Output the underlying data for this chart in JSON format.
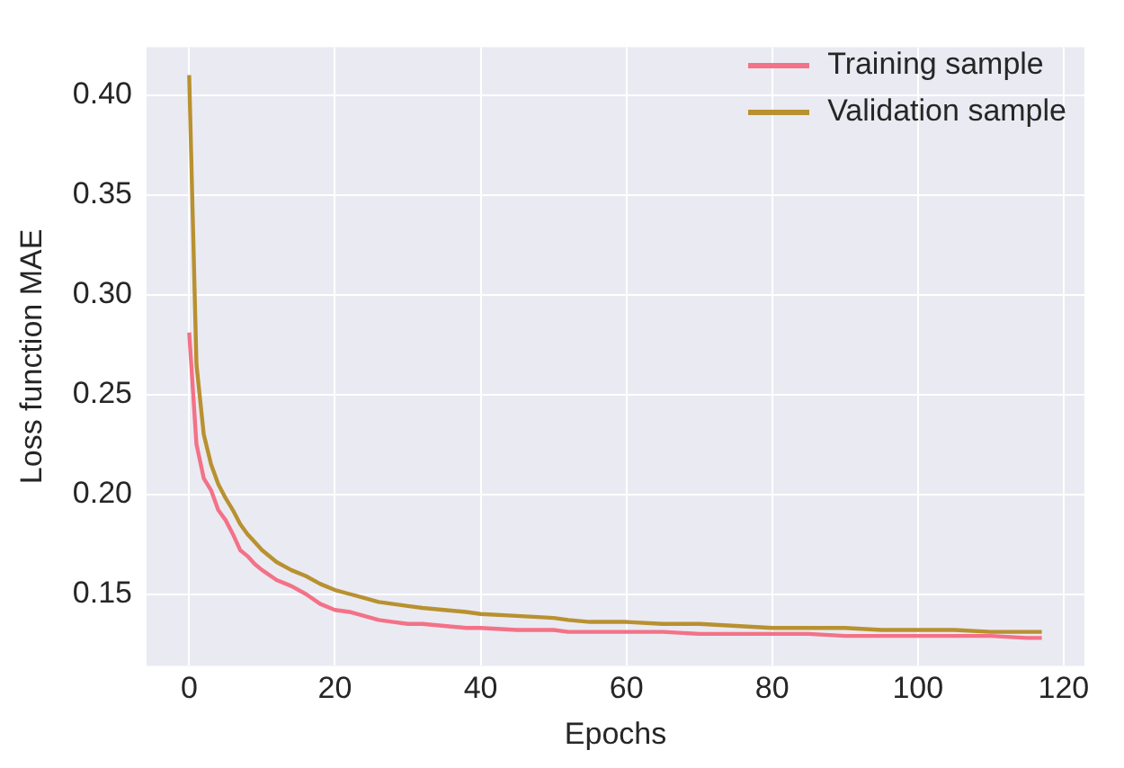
{
  "chart_data": {
    "type": "line",
    "xlabel": "Epochs",
    "ylabel": "Loss function MAE",
    "x": [
      0,
      1,
      2,
      3,
      4,
      5,
      6,
      7,
      8,
      9,
      10,
      12,
      14,
      16,
      18,
      20,
      22,
      24,
      26,
      28,
      30,
      32,
      35,
      38,
      40,
      45,
      50,
      52,
      55,
      60,
      65,
      70,
      75,
      80,
      85,
      90,
      95,
      100,
      105,
      110,
      115,
      117
    ],
    "series": [
      {
        "name": "Training sample",
        "color": "#f37287",
        "values": [
          0.281,
          0.225,
          0.208,
          0.202,
          0.192,
          0.187,
          0.18,
          0.172,
          0.169,
          0.165,
          0.162,
          0.157,
          0.154,
          0.15,
          0.145,
          0.142,
          0.141,
          0.139,
          0.137,
          0.136,
          0.135,
          0.135,
          0.134,
          0.133,
          0.133,
          0.132,
          0.132,
          0.131,
          0.131,
          0.131,
          0.131,
          0.13,
          0.13,
          0.13,
          0.13,
          0.129,
          0.129,
          0.129,
          0.129,
          0.129,
          0.128,
          0.128
        ]
      },
      {
        "name": "Validation sample",
        "color": "#b89130",
        "values": [
          0.41,
          0.265,
          0.23,
          0.215,
          0.205,
          0.198,
          0.192,
          0.185,
          0.18,
          0.176,
          0.172,
          0.166,
          0.162,
          0.159,
          0.155,
          0.152,
          0.15,
          0.148,
          0.146,
          0.145,
          0.144,
          0.143,
          0.142,
          0.141,
          0.14,
          0.139,
          0.138,
          0.137,
          0.136,
          0.136,
          0.135,
          0.135,
          0.134,
          0.133,
          0.133,
          0.133,
          0.132,
          0.132,
          0.132,
          0.131,
          0.131,
          0.131
        ]
      }
    ],
    "xlim": [
      -5.85,
      122.85
    ],
    "xticks": [
      0,
      20,
      40,
      60,
      80,
      100,
      120
    ],
    "ylim": [
      0.114,
      0.424
    ],
    "yticks": [
      {
        "value": 0.15,
        "label": "0.15"
      },
      {
        "value": 0.2,
        "label": "0.20"
      },
      {
        "value": 0.25,
        "label": "0.25"
      },
      {
        "value": 0.3,
        "label": "0.30"
      },
      {
        "value": 0.35,
        "label": "0.35"
      },
      {
        "value": 0.4,
        "label": "0.40"
      }
    ],
    "grid": true,
    "legend": "top right",
    "marker": "none",
    "line_style": "solid"
  }
}
